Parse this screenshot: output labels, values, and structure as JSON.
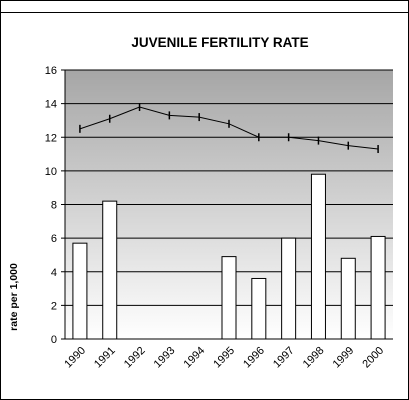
{
  "chart_data": {
    "type": "bar",
    "title": "JUVENILE FERTILITY RATE",
    "xlabel": "",
    "ylabel": "rate per 1,000",
    "ylim": [
      0,
      16
    ],
    "yticks": [
      0,
      2,
      4,
      6,
      8,
      10,
      12,
      14,
      16
    ],
    "categories": [
      "1990",
      "1991",
      "1992",
      "1993",
      "1994",
      "1995",
      "1996",
      "1997",
      "1998",
      "1999",
      "2000"
    ],
    "series": [
      {
        "type": "bar",
        "values": [
          5.7,
          8.2,
          null,
          null,
          null,
          4.9,
          3.6,
          6.0,
          9.8,
          4.8,
          6.1
        ],
        "color": "#ffffff"
      },
      {
        "type": "line",
        "values": [
          12.5,
          13.1,
          13.8,
          13.3,
          13.2,
          12.8,
          12.0,
          12.0,
          11.8,
          11.5,
          11.3
        ],
        "color": "#000000"
      }
    ],
    "grid": true,
    "legend": "none",
    "background": "gradient-gray"
  }
}
